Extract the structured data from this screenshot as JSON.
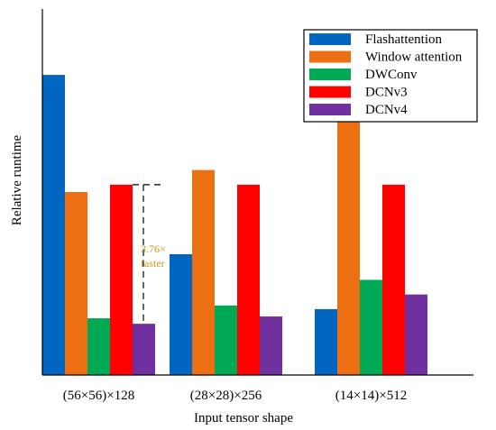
{
  "chart_data": {
    "type": "bar",
    "title": "",
    "xlabel": "Input tensor shape",
    "ylabel": "Relative runtime",
    "categories": [
      "(56×56)×128",
      "(28×28)×256",
      "(14×14)×512"
    ],
    "ylim": [
      0,
      1
    ],
    "series": [
      {
        "name": "Flashattention",
        "color": "#0066C0",
        "values": [
          0.82,
          0.33,
          0.18
        ]
      },
      {
        "name": "Window attention",
        "color": "#EC6F12",
        "values": [
          0.5,
          0.56,
          0.74
        ]
      },
      {
        "name": "DWConv",
        "color": "#00AA55",
        "values": [
          0.155,
          0.19,
          0.26
        ]
      },
      {
        "name": "DCNv3",
        "color": "#FF0000",
        "values": [
          0.52,
          0.52,
          0.52
        ]
      },
      {
        "name": "DCNv4",
        "color": "#7030A0",
        "values": [
          0.14,
          0.16,
          0.22
        ]
      }
    ],
    "annotation": {
      "line1": "3.76×",
      "line2": "faster",
      "color": "#C8961E",
      "group_index": 0,
      "from_series": 3,
      "to_series": 4
    },
    "legend_position": "top-right",
    "grid": false
  }
}
